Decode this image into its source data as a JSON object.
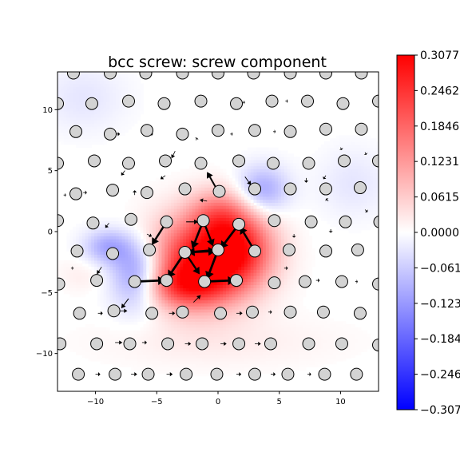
{
  "chart_data": {
    "type": "scatter",
    "title": "bcc screw: screw component",
    "xlabel": "",
    "ylabel": "",
    "xlim": [
      -13.1,
      13.1
    ],
    "ylim": [
      -13.1,
      13.1
    ],
    "xticks": [
      -10,
      -5,
      0,
      5,
      10
    ],
    "yticks": [
      -10,
      -5,
      0,
      5,
      10
    ],
    "xtick_labels": [
      "−10",
      "−5",
      "0",
      "5",
      "10"
    ],
    "ytick_labels": [
      "−10",
      "−5",
      "0",
      "5",
      "10"
    ],
    "grid": false,
    "atom_color": "#d3d3d3",
    "arrow_color": "#000000",
    "colormap": "bwr",
    "colormap_stops": [
      "#0000ff",
      "#ffffff",
      "#ff0000"
    ],
    "colorbar": {
      "range": [
        -0.3077,
        0.3077
      ],
      "ticks": [
        0.3077,
        0.2462,
        0.1846,
        0.1231,
        0.0615,
        0.0,
        -0.0615,
        -0.1231,
        -0.1846,
        -0.2462,
        -0.3077
      ],
      "labels": [
        "0.3077",
        "0.2462",
        "0.1846",
        "0.1231",
        "0.0615",
        "0.0000",
        "−0.0615",
        "−0.1231",
        "−0.1846",
        "−0.2462",
        "−0.3077"
      ]
    },
    "field_blobs": [
      {
        "x": -1.5,
        "y": -2.5,
        "sx": 3.0,
        "sy": 2.5,
        "value": 0.29
      },
      {
        "x": 1.8,
        "y": -1.3,
        "sx": 2.0,
        "sy": 2.0,
        "value": 0.18
      },
      {
        "x": 0.2,
        "y": 1.5,
        "sx": 1.8,
        "sy": 1.5,
        "value": 0.12
      },
      {
        "x": -3.0,
        "y": -4.5,
        "sx": 2.5,
        "sy": 1.2,
        "value": 0.12
      },
      {
        "x": -6.5,
        "y": -3.5,
        "sx": 1.6,
        "sy": 2.0,
        "value": -0.17
      },
      {
        "x": -9.0,
        "y": -1.2,
        "sx": 1.4,
        "sy": 1.0,
        "value": -0.1
      },
      {
        "x": 3.6,
        "y": 3.4,
        "sx": 1.5,
        "sy": 1.4,
        "value": -0.11
      },
      {
        "x": 11.0,
        "y": 4.0,
        "sx": 2.0,
        "sy": 2.0,
        "value": -0.03
      },
      {
        "x": -11.0,
        "y": 11.0,
        "sx": 2.5,
        "sy": 2.0,
        "value": -0.03
      },
      {
        "x": 0.0,
        "y": -9.0,
        "sx": 7.0,
        "sy": 1.5,
        "value": 0.02
      },
      {
        "x": -11.0,
        "y": -3.5,
        "sx": 1.5,
        "sy": 1.0,
        "value": 0.02
      }
    ],
    "atoms": [
      [
        -11.8,
        13.0
      ],
      [
        -8.8,
        13.0
      ],
      [
        -5.9,
        13.0
      ],
      [
        -2.9,
        13.0
      ],
      [
        0.0,
        13.0
      ],
      [
        2.9,
        13.0
      ],
      [
        5.9,
        13.0
      ],
      [
        8.8,
        13.0
      ],
      [
        11.7,
        13.0
      ],
      [
        -13.1,
        10.5
      ],
      [
        -10.3,
        10.5
      ],
      [
        -7.3,
        10.7
      ],
      [
        -4.4,
        10.5
      ],
      [
        -1.4,
        10.7
      ],
      [
        1.5,
        10.5
      ],
      [
        4.4,
        10.7
      ],
      [
        7.3,
        10.7
      ],
      [
        10.2,
        10.5
      ],
      [
        13.1,
        10.7
      ],
      [
        -11.6,
        8.2
      ],
      [
        -8.8,
        8.0
      ],
      [
        -5.8,
        8.3
      ],
      [
        -2.9,
        8.0
      ],
      [
        0.0,
        8.3
      ],
      [
        3.0,
        8.3
      ],
      [
        5.9,
        8.2
      ],
      [
        8.8,
        8.4
      ],
      [
        11.7,
        8.4
      ],
      [
        -13.1,
        5.6
      ],
      [
        -10.1,
        5.8
      ],
      [
        -7.3,
        5.6
      ],
      [
        -4.3,
        5.8
      ],
      [
        -1.4,
        5.6
      ],
      [
        1.7,
        5.8
      ],
      [
        4.5,
        5.6
      ],
      [
        7.4,
        5.6
      ],
      [
        10.3,
        5.8
      ],
      [
        13.1,
        5.8
      ],
      [
        -11.6,
        3.1
      ],
      [
        -8.6,
        3.4
      ],
      [
        -5.8,
        3.2
      ],
      [
        -2.7,
        3.5
      ],
      [
        0.1,
        3.3
      ],
      [
        3.0,
        3.5
      ],
      [
        5.9,
        3.5
      ],
      [
        8.8,
        3.5
      ],
      [
        11.6,
        3.6
      ],
      [
        -13.1,
        0.9
      ],
      [
        -10.2,
        0.7
      ],
      [
        -7.1,
        1.0
      ],
      [
        -4.2,
        0.8
      ],
      [
        -1.2,
        0.9
      ],
      [
        1.7,
        0.6
      ],
      [
        4.6,
        0.9
      ],
      [
        7.6,
        0.8
      ],
      [
        10.4,
        0.8
      ],
      [
        13.2,
        0.8
      ],
      [
        -11.5,
        -1.6
      ],
      [
        -8.6,
        -1.8
      ],
      [
        -5.6,
        -1.5
      ],
      [
        -2.7,
        -1.7
      ],
      [
        0.0,
        -1.5
      ],
      [
        3.0,
        -1.6
      ],
      [
        5.8,
        -1.5
      ],
      [
        8.8,
        -1.6
      ],
      [
        11.4,
        -1.5
      ],
      [
        -13.0,
        -4.3
      ],
      [
        -9.9,
        -4.0
      ],
      [
        -6.8,
        -4.1
      ],
      [
        -4.2,
        -4.0
      ],
      [
        -1.1,
        -4.1
      ],
      [
        1.5,
        -4.0
      ],
      [
        4.6,
        -4.2
      ],
      [
        7.1,
        -4.1
      ],
      [
        10.1,
        -4.1
      ],
      [
        13.1,
        -4.3
      ],
      [
        -11.3,
        -6.7
      ],
      [
        -8.5,
        -6.5
      ],
      [
        -5.4,
        -6.7
      ],
      [
        -2.9,
        -6.6
      ],
      [
        0.2,
        -6.7
      ],
      [
        2.8,
        -6.6
      ],
      [
        5.9,
        -6.6
      ],
      [
        8.6,
        -6.6
      ],
      [
        11.6,
        -6.7
      ],
      [
        -12.9,
        -9.2
      ],
      [
        -9.9,
        -9.2
      ],
      [
        -7.2,
        -9.2
      ],
      [
        -4.1,
        -9.2
      ],
      [
        -1.3,
        -9.2
      ],
      [
        1.7,
        -9.2
      ],
      [
        4.3,
        -9.2
      ],
      [
        7.4,
        -9.2
      ],
      [
        10.1,
        -9.2
      ],
      [
        13.1,
        -9.3
      ],
      [
        -11.4,
        -11.7
      ],
      [
        -8.4,
        -11.7
      ],
      [
        -5.7,
        -11.7
      ],
      [
        -2.6,
        -11.7
      ],
      [
        -0.1,
        -11.7
      ],
      [
        3.0,
        -11.7
      ],
      [
        5.7,
        -11.7
      ],
      [
        8.7,
        -11.7
      ],
      [
        11.3,
        -11.7
      ]
    ],
    "arrows": [
      [
        0.0,
        3.3,
        -0.9,
        1.6
      ],
      [
        -1.2,
        0.9,
        0.8,
        -2.1
      ],
      [
        -1.2,
        0.9,
        -0.9,
        -2.3
      ],
      [
        -4.2,
        0.8,
        -1.2,
        -1.9
      ],
      [
        -2.6,
        0.8,
        1.0,
        0.0
      ],
      [
        1.7,
        0.6,
        -1.5,
        -2.0
      ],
      [
        3.0,
        -1.6,
        -1.2,
        2.0
      ],
      [
        0.0,
        -1.5,
        -2.5,
        -0.2
      ],
      [
        -2.7,
        -1.7,
        2.5,
        0.1
      ],
      [
        -2.7,
        -1.7,
        -1.4,
        -2.1
      ],
      [
        -2.7,
        -1.7,
        1.2,
        -1.8
      ],
      [
        0.0,
        -1.5,
        -0.9,
        -2.4
      ],
      [
        -6.8,
        -4.1,
        2.5,
        0.1
      ],
      [
        -1.1,
        -4.1,
        2.5,
        0.1
      ],
      [
        -2.0,
        -5.8,
        0.6,
        0.6
      ],
      [
        -7.3,
        -5.5,
        -0.6,
        -0.8
      ],
      [
        -0.9,
        2.5,
        -0.6,
        0.1
      ],
      [
        2.2,
        4.5,
        0.5,
        -0.7
      ],
      [
        -3.5,
        6.6,
        -0.3,
        -0.6
      ],
      [
        -9.5,
        -2.9,
        -0.4,
        -0.6
      ],
      [
        -8.9,
        0.7,
        -0.3,
        -0.4
      ],
      [
        -8.0,
        -6.5,
        0.6,
        0.0
      ],
      [
        -9.8,
        -6.7,
        0.4,
        0.0
      ],
      [
        -4.0,
        -6.7,
        0.5,
        0.0
      ],
      [
        1.5,
        -6.7,
        0.5,
        0.0
      ],
      [
        4.1,
        -6.6,
        0.3,
        0.0
      ],
      [
        -8.4,
        -9.1,
        0.6,
        0.0
      ],
      [
        -6.2,
        -9.1,
        0.4,
        0.0
      ],
      [
        -2.7,
        -9.2,
        0.5,
        0.0
      ],
      [
        0.2,
        -9.2,
        0.5,
        0.0
      ],
      [
        3.0,
        -9.2,
        0.5,
        0.0
      ],
      [
        -10.0,
        -11.7,
        0.4,
        0.0
      ],
      [
        -7.1,
        -11.7,
        0.5,
        0.0
      ],
      [
        -4.2,
        -11.7,
        0.5,
        0.0
      ],
      [
        1.5,
        -11.7,
        0.4,
        0.0
      ],
      [
        4.3,
        -11.7,
        0.4,
        0.0
      ],
      [
        7.3,
        -11.7,
        0.3,
        0.0
      ],
      [
        -4.3,
        4.6,
        -0.4,
        -0.3
      ],
      [
        -7.6,
        5.0,
        -0.3,
        -0.4
      ],
      [
        -6.8,
        3.0,
        0.0,
        0.4
      ],
      [
        -5.8,
        -0.2,
        0.4,
        -0.2
      ],
      [
        -11.0,
        3.2,
        0.3,
        0.0
      ],
      [
        -8.4,
        8.0,
        0.4,
        0.0
      ],
      [
        -5.6,
        8.0,
        0.3,
        0.0
      ],
      [
        -7.4,
        10.7,
        0.4,
        0.0
      ],
      [
        -4.3,
        10.6,
        0.3,
        0.0
      ],
      [
        7.2,
        4.4,
        0.0,
        -0.4
      ],
      [
        8.8,
        4.6,
        -0.2,
        -0.3
      ],
      [
        9.2,
        0.2,
        0.0,
        -0.3
      ],
      [
        6.2,
        -0.2,
        0.0,
        -0.3
      ],
      [
        9.0,
        2.5,
        -0.2,
        0.2
      ],
      [
        12.0,
        1.8,
        0.2,
        -0.2
      ],
      [
        -12.6,
        3.0,
        0.2,
        0.0
      ],
      [
        -12.0,
        -3.0,
        0.2,
        0.0
      ],
      [
        5.4,
        -3.0,
        0.3,
        0.0
      ],
      [
        8.0,
        -4.0,
        0.3,
        0.0
      ],
      [
        11.2,
        -4.1,
        0.2,
        0.0
      ],
      [
        10.0,
        6.9,
        0.1,
        -0.2
      ],
      [
        12.0,
        6.5,
        0.1,
        -0.2
      ],
      [
        -1.8,
        7.5,
        0.1,
        0.2
      ],
      [
        1.0,
        8.0,
        0.2,
        0.0
      ],
      [
        4.5,
        8.2,
        0.2,
        0.0
      ],
      [
        2.0,
        10.6,
        0.2,
        0.0
      ],
      [
        5.5,
        10.7,
        0.2,
        0.0
      ]
    ]
  }
}
